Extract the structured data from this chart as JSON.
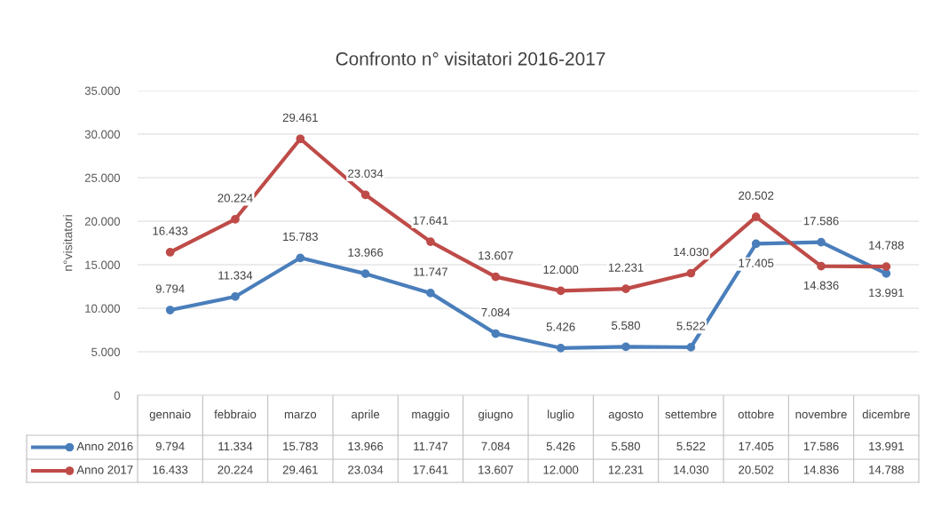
{
  "chart_data": {
    "type": "line",
    "title": "Confronto n° visitatori 2016-2017",
    "ylabel": "n°visitatori",
    "categories": [
      "gennaio",
      "febbraio",
      "marzo",
      "aprile",
      "maggio",
      "giugno",
      "luglio",
      "agosto",
      "settembre",
      "ottobre",
      "novembre",
      "dicembre"
    ],
    "series": [
      {
        "name": "Anno 2016",
        "color": "#4a7ebb",
        "values": [
          9794,
          11334,
          15783,
          13966,
          11747,
          7084,
          5426,
          5580,
          5522,
          17405,
          17586,
          13991
        ],
        "value_labels": [
          "9.794",
          "11.334",
          "15.783",
          "13.966",
          "11.747",
          "7.084",
          "5.426",
          "5.580",
          "5.522",
          "17.405",
          "17.586",
          "13.991"
        ]
      },
      {
        "name": "Anno 2017",
        "color": "#be4b48",
        "values": [
          16433,
          20224,
          29461,
          23034,
          17641,
          13607,
          12000,
          12231,
          14030,
          20502,
          14836,
          14788
        ],
        "value_labels": [
          "16.433",
          "20.224",
          "29.461",
          "23.034",
          "17.641",
          "13.607",
          "12.000",
          "12.231",
          "14.030",
          "20.502",
          "14.836",
          "14.788"
        ]
      }
    ],
    "ylim": [
      0,
      35000
    ],
    "yticks": [
      {
        "value": 0,
        "label": "0"
      },
      {
        "value": 5000,
        "label": "5.000"
      },
      {
        "value": 10000,
        "label": "10.000"
      },
      {
        "value": 15000,
        "label": "15.000"
      },
      {
        "value": 20000,
        "label": "20.000"
      },
      {
        "value": 25000,
        "label": "25.000"
      },
      {
        "value": 30000,
        "label": "30.000"
      },
      {
        "value": 35000,
        "label": "35.000"
      }
    ],
    "grid": "y",
    "legend": "bottom left",
    "marker": "circle",
    "line_style": "solid"
  }
}
